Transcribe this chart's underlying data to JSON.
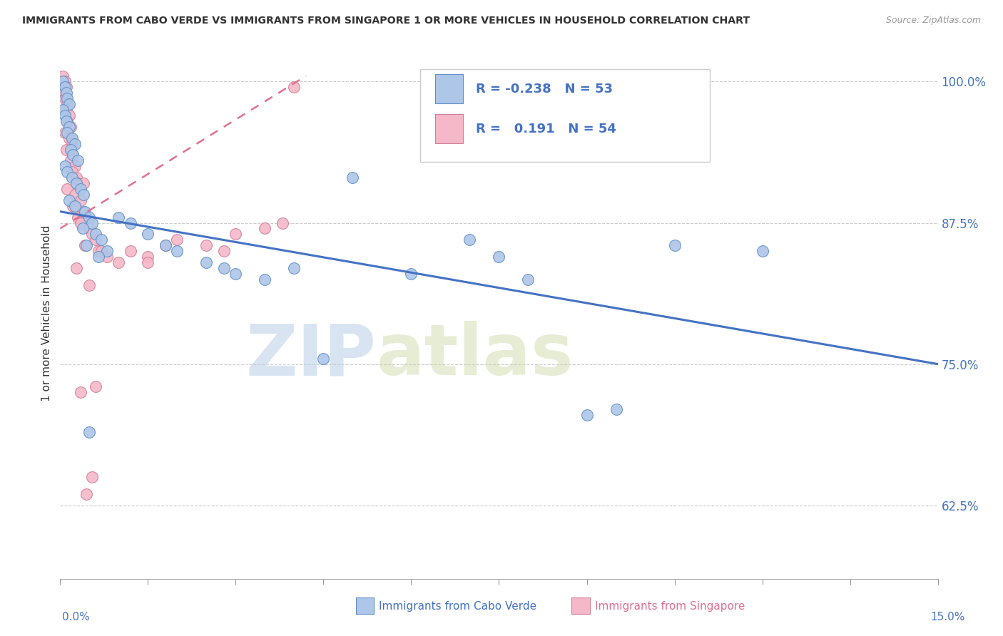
{
  "title": "IMMIGRANTS FROM CABO VERDE VS IMMIGRANTS FROM SINGAPORE 1 OR MORE VEHICLES IN HOUSEHOLD CORRELATION CHART",
  "source": "Source: ZipAtlas.com",
  "ylabel": "1 or more Vehicles in Household",
  "xlim": [
    0.0,
    15.0
  ],
  "ylim": [
    56.0,
    103.0
  ],
  "yticks": [
    62.5,
    75.0,
    87.5,
    100.0
  ],
  "xticks": [
    0.0,
    1.5,
    3.0,
    4.5,
    6.0,
    7.5,
    9.0,
    10.5,
    12.0,
    13.5,
    15.0
  ],
  "cabo_verde_R": -0.238,
  "cabo_verde_N": 53,
  "singapore_R": 0.191,
  "singapore_N": 54,
  "cabo_verde_color": "#aec6e8",
  "singapore_color": "#f5b8c8",
  "cabo_verde_line_color": "#4472c4",
  "singapore_line_color": "#e07090",
  "watermark_zip": "ZIP",
  "watermark_atlas": "atlas",
  "cabo_verde_scatter": [
    [
      0.05,
      100.0
    ],
    [
      0.08,
      99.5
    ],
    [
      0.1,
      99.0
    ],
    [
      0.12,
      98.5
    ],
    [
      0.15,
      98.0
    ],
    [
      0.05,
      97.5
    ],
    [
      0.08,
      97.0
    ],
    [
      0.1,
      96.5
    ],
    [
      0.15,
      96.0
    ],
    [
      0.12,
      95.5
    ],
    [
      0.2,
      95.0
    ],
    [
      0.25,
      94.5
    ],
    [
      0.18,
      94.0
    ],
    [
      0.22,
      93.5
    ],
    [
      0.3,
      93.0
    ],
    [
      0.08,
      92.5
    ],
    [
      0.12,
      92.0
    ],
    [
      0.2,
      91.5
    ],
    [
      0.28,
      91.0
    ],
    [
      0.35,
      90.5
    ],
    [
      0.4,
      90.0
    ],
    [
      0.15,
      89.5
    ],
    [
      0.25,
      89.0
    ],
    [
      0.42,
      88.5
    ],
    [
      0.5,
      88.0
    ],
    [
      0.55,
      87.5
    ],
    [
      0.38,
      87.0
    ],
    [
      0.6,
      86.5
    ],
    [
      0.7,
      86.0
    ],
    [
      0.45,
      85.5
    ],
    [
      0.8,
      85.0
    ],
    [
      0.65,
      84.5
    ],
    [
      1.0,
      88.0
    ],
    [
      1.2,
      87.5
    ],
    [
      1.5,
      86.5
    ],
    [
      1.8,
      85.5
    ],
    [
      2.0,
      85.0
    ],
    [
      2.5,
      84.0
    ],
    [
      2.8,
      83.5
    ],
    [
      3.0,
      83.0
    ],
    [
      3.5,
      82.5
    ],
    [
      4.0,
      83.5
    ],
    [
      5.0,
      91.5
    ],
    [
      6.0,
      83.0
    ],
    [
      7.0,
      86.0
    ],
    [
      7.5,
      84.5
    ],
    [
      8.0,
      82.5
    ],
    [
      9.0,
      70.5
    ],
    [
      9.5,
      71.0
    ],
    [
      10.5,
      85.5
    ],
    [
      12.0,
      85.0
    ],
    [
      0.5,
      69.0
    ],
    [
      4.5,
      75.5
    ]
  ],
  "singapore_scatter": [
    [
      0.05,
      100.5
    ],
    [
      0.08,
      100.0
    ],
    [
      0.1,
      99.5
    ],
    [
      0.05,
      99.0
    ],
    [
      0.08,
      98.5
    ],
    [
      0.12,
      98.0
    ],
    [
      0.1,
      97.5
    ],
    [
      0.15,
      97.0
    ],
    [
      0.12,
      96.5
    ],
    [
      0.18,
      96.0
    ],
    [
      0.08,
      95.5
    ],
    [
      0.15,
      95.0
    ],
    [
      0.2,
      94.5
    ],
    [
      0.1,
      94.0
    ],
    [
      0.22,
      93.5
    ],
    [
      0.18,
      93.0
    ],
    [
      0.25,
      92.5
    ],
    [
      0.2,
      92.0
    ],
    [
      0.28,
      91.5
    ],
    [
      0.3,
      91.0
    ],
    [
      0.12,
      90.5
    ],
    [
      0.25,
      90.0
    ],
    [
      0.35,
      89.5
    ],
    [
      0.22,
      89.0
    ],
    [
      0.4,
      88.5
    ],
    [
      0.3,
      88.0
    ],
    [
      0.45,
      88.0
    ],
    [
      0.35,
      87.5
    ],
    [
      0.5,
      87.0
    ],
    [
      0.55,
      86.5
    ],
    [
      0.6,
      86.0
    ],
    [
      0.42,
      85.5
    ],
    [
      0.65,
      85.0
    ],
    [
      0.7,
      85.0
    ],
    [
      0.8,
      84.5
    ],
    [
      1.0,
      84.0
    ],
    [
      1.2,
      85.0
    ],
    [
      1.5,
      84.5
    ],
    [
      1.8,
      85.5
    ],
    [
      2.0,
      86.0
    ],
    [
      2.5,
      85.5
    ],
    [
      3.0,
      86.5
    ],
    [
      3.5,
      87.0
    ],
    [
      0.4,
      91.0
    ],
    [
      0.28,
      83.5
    ],
    [
      0.5,
      82.0
    ],
    [
      0.6,
      73.0
    ],
    [
      0.35,
      72.5
    ],
    [
      0.55,
      65.0
    ],
    [
      0.45,
      63.5
    ],
    [
      1.5,
      84.0
    ],
    [
      2.8,
      85.0
    ],
    [
      3.8,
      87.5
    ],
    [
      4.0,
      99.5
    ]
  ]
}
